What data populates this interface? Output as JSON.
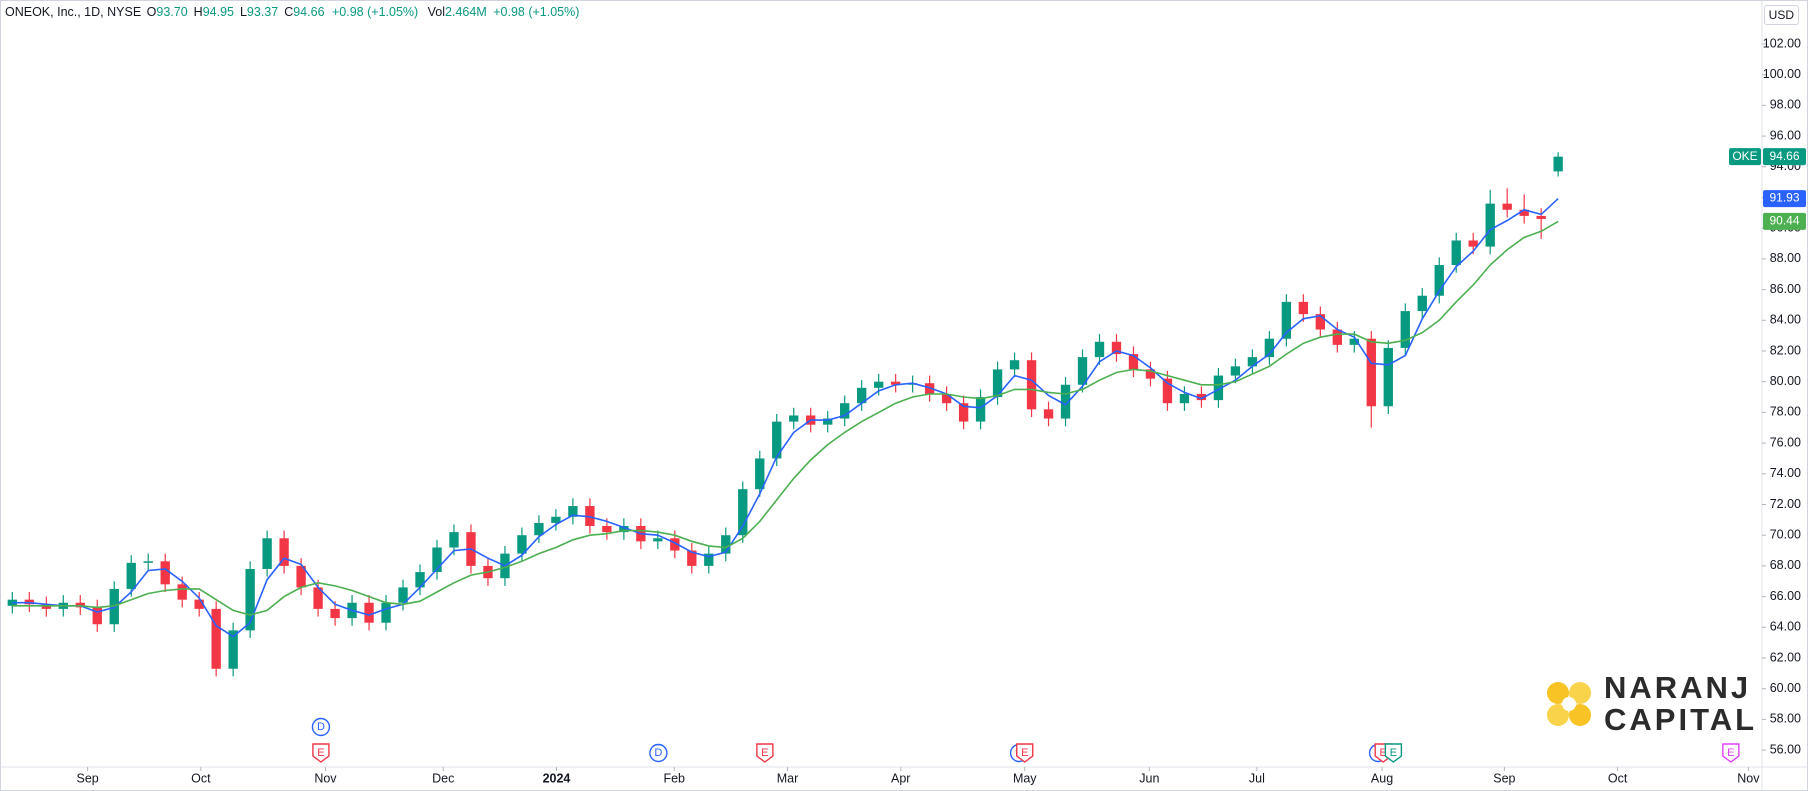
{
  "chart_data": {
    "type": "candlestick",
    "title": "ONEOK, Inc., 1D, NYSE",
    "header_values": [
      {
        "label": "O",
        "text": "93.70"
      },
      {
        "label": "H",
        "text": "94.95"
      },
      {
        "label": "L",
        "text": "93.37"
      },
      {
        "label": "C",
        "text": "94.66"
      }
    ],
    "change": "+0.98 (+1.05%)",
    "volume_label": "Vol",
    "volume": "2.464M",
    "volume_change": "+0.98 (+1.05%)",
    "currency": "USD",
    "symbol_label": "OKE",
    "up_color": "#089981",
    "down_color": "#f23645",
    "x": [
      1,
      4,
      7,
      10,
      13,
      16,
      19,
      22,
      25,
      28,
      31,
      34,
      37,
      40,
      43,
      46,
      49,
      52,
      55,
      58,
      61,
      64,
      67,
      70,
      73,
      76,
      79,
      82,
      85,
      88,
      91,
      94,
      97,
      100,
      103,
      106,
      109,
      112,
      115,
      118,
      121,
      124,
      127,
      130,
      133,
      136,
      139,
      142,
      145,
      148,
      151,
      154,
      157,
      160,
      163,
      166,
      169,
      172,
      175,
      178,
      181,
      184,
      187,
      190,
      193,
      196,
      199,
      202,
      205,
      208,
      211,
      214,
      217,
      220,
      223,
      226,
      229,
      232,
      235,
      238,
      241,
      244,
      247,
      250,
      253,
      256,
      259,
      262,
      265,
      268,
      271,
      274
    ],
    "open": [
      65.4,
      65.8,
      65.5,
      65.2,
      65.6,
      65.3,
      64.2,
      66.5,
      68.2,
      68.3,
      66.8,
      65.8,
      65.2,
      61.3,
      63.8,
      67.8,
      69.8,
      68.0,
      66.6,
      65.2,
      64.6,
      65.6,
      64.3,
      65.6,
      66.6,
      67.6,
      69.2,
      70.2,
      68.0,
      67.2,
      68.8,
      70.0,
      70.8,
      71.2,
      71.9,
      70.6,
      70.2,
      70.6,
      69.6,
      69.8,
      69.0,
      68.0,
      68.8,
      70.0,
      73.0,
      75.0,
      77.4,
      77.8,
      77.2,
      77.6,
      78.6,
      79.6,
      80.0,
      79.8,
      79.9,
      79.2,
      78.6,
      77.4,
      79.0,
      80.8,
      81.4,
      78.2,
      77.6,
      79.8,
      81.6,
      82.6,
      81.8,
      80.8,
      80.2,
      78.6,
      79.2,
      78.8,
      80.4,
      81.0,
      81.6,
      82.8,
      85.2,
      84.4,
      83.4,
      82.4,
      82.8,
      78.4,
      82.2,
      84.6,
      85.6,
      87.6,
      89.2,
      88.8,
      91.6,
      91.2,
      90.8,
      93.7
    ],
    "high": [
      66.3,
      66.3,
      66.0,
      66.1,
      66.1,
      65.8,
      67.0,
      68.7,
      68.8,
      68.8,
      67.3,
      66.3,
      65.7,
      64.3,
      68.3,
      70.3,
      70.3,
      68.5,
      67.1,
      65.7,
      66.1,
      66.1,
      66.1,
      67.1,
      68.1,
      69.7,
      70.7,
      70.7,
      68.5,
      69.3,
      70.5,
      71.3,
      71.7,
      72.4,
      72.4,
      71.1,
      71.1,
      71.1,
      70.3,
      70.3,
      69.5,
      69.3,
      70.5,
      73.5,
      75.5,
      77.9,
      78.3,
      78.3,
      78.1,
      79.1,
      80.1,
      80.5,
      80.5,
      80.4,
      80.4,
      79.7,
      79.1,
      79.5,
      81.3,
      81.9,
      81.9,
      78.7,
      80.3,
      82.1,
      83.1,
      83.1,
      82.3,
      81.3,
      80.7,
      79.7,
      79.7,
      80.9,
      81.5,
      82.1,
      83.3,
      85.7,
      85.7,
      84.9,
      83.9,
      83.3,
      83.3,
      82.7,
      85.1,
      86.1,
      88.1,
      89.7,
      89.7,
      92.5,
      92.6,
      92.2,
      91.3,
      94.95
    ],
    "low": [
      64.9,
      65.0,
      64.7,
      64.7,
      64.8,
      63.7,
      63.7,
      66.0,
      67.7,
      66.3,
      65.3,
      64.7,
      60.8,
      60.8,
      63.3,
      67.3,
      67.5,
      66.1,
      64.7,
      64.1,
      64.1,
      63.8,
      63.8,
      65.1,
      66.1,
      67.1,
      68.7,
      67.5,
      66.7,
      66.7,
      68.3,
      69.5,
      70.3,
      70.7,
      70.1,
      69.7,
      69.7,
      69.1,
      69.1,
      68.5,
      67.5,
      67.5,
      68.3,
      69.5,
      72.5,
      74.5,
      76.9,
      76.7,
      76.7,
      77.1,
      78.1,
      79.1,
      79.3,
      79.3,
      78.7,
      78.1,
      76.9,
      76.9,
      78.5,
      80.3,
      77.7,
      77.1,
      77.1,
      79.3,
      81.1,
      81.3,
      80.3,
      79.7,
      78.1,
      78.1,
      78.3,
      78.3,
      79.9,
      80.5,
      81.1,
      82.3,
      83.9,
      82.9,
      81.9,
      81.9,
      77.0,
      77.9,
      81.7,
      84.1,
      85.1,
      87.1,
      88.3,
      88.3,
      90.7,
      90.3,
      89.3,
      93.37
    ],
    "close": [
      65.8,
      65.5,
      65.2,
      65.6,
      65.3,
      64.2,
      66.5,
      68.2,
      68.3,
      66.8,
      65.8,
      65.2,
      61.3,
      63.8,
      67.8,
      69.8,
      68.0,
      66.6,
      65.2,
      64.6,
      65.6,
      64.3,
      65.6,
      66.6,
      67.6,
      69.2,
      70.2,
      68.0,
      67.2,
      68.8,
      70.0,
      70.8,
      71.2,
      71.9,
      70.6,
      70.2,
      70.6,
      69.6,
      69.8,
      69.0,
      68.0,
      68.8,
      70.0,
      73.0,
      75.0,
      77.4,
      77.8,
      77.2,
      77.6,
      78.6,
      79.6,
      80.0,
      79.8,
      79.9,
      79.2,
      78.6,
      77.4,
      79.0,
      80.8,
      81.4,
      78.2,
      77.6,
      79.8,
      81.6,
      82.6,
      81.8,
      80.8,
      80.2,
      78.6,
      79.2,
      78.8,
      80.4,
      81.0,
      81.6,
      82.8,
      85.2,
      84.4,
      83.4,
      82.4,
      82.8,
      78.4,
      82.2,
      84.6,
      85.6,
      87.6,
      89.2,
      88.8,
      91.6,
      91.2,
      90.8,
      90.6,
      94.66
    ],
    "series": [
      {
        "color": "#2962ff",
        "values": [
          65.6,
          65.6,
          65.5,
          65.4,
          65.4,
          65.0,
          65.3,
          66.3,
          67.7,
          67.8,
          67.0,
          65.9,
          64.1,
          63.4,
          64.3,
          67.1,
          68.5,
          68.1,
          66.6,
          65.5,
          65.1,
          64.8,
          65.2,
          65.5,
          66.6,
          67.8,
          69.0,
          69.1,
          68.5,
          68.0,
          68.7,
          69.9,
          70.7,
          71.3,
          71.2,
          70.9,
          70.5,
          70.1,
          70.0,
          69.5,
          68.9,
          68.6,
          68.9,
          70.6,
          72.7,
          75.1,
          76.7,
          77.5,
          77.5,
          77.8,
          78.6,
          79.4,
          79.8,
          79.9,
          79.6,
          79.2,
          78.4,
          78.3,
          79.1,
          80.4,
          80.1,
          79.1,
          78.5,
          79.7,
          81.3,
          82.0,
          81.7,
          80.9,
          79.9,
          79.3,
          78.9,
          79.5,
          80.1,
          81.0,
          81.8,
          83.2,
          84.1,
          84.3,
          83.4,
          82.9,
          81.2,
          81.1,
          81.7,
          84.1,
          85.9,
          87.5,
          88.5,
          89.9,
          90.5,
          91.2,
          90.9,
          91.93
        ]
      },
      {
        "color": "#4caf50",
        "values": [
          65.4,
          65.4,
          65.4,
          65.4,
          65.4,
          65.3,
          65.4,
          65.8,
          66.2,
          66.4,
          66.5,
          66.5,
          65.8,
          65.1,
          64.8,
          65.1,
          66.0,
          66.6,
          66.9,
          66.7,
          66.4,
          66.0,
          65.6,
          65.5,
          65.7,
          66.3,
          66.9,
          67.4,
          67.6,
          67.9,
          68.3,
          68.8,
          69.2,
          69.7,
          70.0,
          70.1,
          70.3,
          70.3,
          70.2,
          70.0,
          69.6,
          69.3,
          69.2,
          69.8,
          70.9,
          72.3,
          73.7,
          74.9,
          75.9,
          76.7,
          77.4,
          78.0,
          78.6,
          79.0,
          79.2,
          79.2,
          79.0,
          78.9,
          79.1,
          79.5,
          79.5,
          79.3,
          79.2,
          79.5,
          80.1,
          80.6,
          80.8,
          80.7,
          80.4,
          80.1,
          79.8,
          79.8,
          80.0,
          80.5,
          81.0,
          81.8,
          82.5,
          82.9,
          83.1,
          83.1,
          82.6,
          82.5,
          82.7,
          83.2,
          84.0,
          85.2,
          86.3,
          87.6,
          88.6,
          89.4,
          89.8,
          90.44
        ]
      }
    ],
    "xlim": [
      -1,
      310
    ],
    "xticks": [
      {
        "value": 14.3,
        "label": "Sep"
      },
      {
        "value": 34.3,
        "label": "Oct"
      },
      {
        "value": 56.3,
        "label": "Nov"
      },
      {
        "value": 77.1,
        "label": "Dec"
      },
      {
        "value": 97.1,
        "label": "2024"
      },
      {
        "value": 117.9,
        "label": "Feb"
      },
      {
        "value": 137.9,
        "label": "Mar"
      },
      {
        "value": 157.9,
        "label": "Apr"
      },
      {
        "value": 179.8,
        "label": "May"
      },
      {
        "value": 201.8,
        "label": "Jun"
      },
      {
        "value": 220.8,
        "label": "Jul"
      },
      {
        "value": 242.9,
        "label": "Aug"
      },
      {
        "value": 264.5,
        "label": "Sep"
      },
      {
        "value": 284.5,
        "label": "Oct"
      },
      {
        "value": 307.6,
        "label": "Nov"
      }
    ],
    "ylim": [
      54.9,
      104.8
    ],
    "yticks": [
      {
        "value": 56,
        "label": "56.00"
      },
      {
        "value": 58,
        "label": "58.00"
      },
      {
        "value": 60,
        "label": "60.00"
      },
      {
        "value": 62,
        "label": "62.00"
      },
      {
        "value": 64,
        "label": "64.00"
      },
      {
        "value": 66,
        "label": "66.00"
      },
      {
        "value": 68,
        "label": "68.00"
      },
      {
        "value": 70,
        "label": "70.00"
      },
      {
        "value": 72,
        "label": "72.00"
      },
      {
        "value": 74,
        "label": "74.00"
      },
      {
        "value": 76,
        "label": "76.00"
      },
      {
        "value": 78,
        "label": "78.00"
      },
      {
        "value": 80,
        "label": "80.00"
      },
      {
        "value": 82,
        "label": "82.00"
      },
      {
        "value": 84,
        "label": "84.00"
      },
      {
        "value": 86,
        "label": "86.00"
      },
      {
        "value": 88,
        "label": "88.00"
      },
      {
        "value": 90,
        "label": "90.00"
      },
      {
        "value": 92,
        "label": "92.00"
      },
      {
        "value": 94,
        "label": "94.00"
      },
      {
        "value": 96,
        "label": "96.00"
      },
      {
        "value": 98,
        "label": "98.00"
      },
      {
        "value": 100,
        "label": "100.00"
      },
      {
        "value": 102,
        "label": "102.00"
      }
    ],
    "grid": false,
    "events": [
      {
        "label": "E",
        "x": 55.5,
        "color": "#f23645"
      },
      {
        "label": "D",
        "x": 55.5,
        "color": "#2962ff"
      },
      {
        "label": "D",
        "x": 115.1,
        "color": "#2962ff"
      },
      {
        "label": "E",
        "x": 133.9,
        "color": "#f23645"
      },
      {
        "label": "D",
        "x": 178.8,
        "color": "#2962ff"
      },
      {
        "label": "E",
        "x": 179.8,
        "color": "#f23645"
      },
      {
        "label": "D",
        "x": 242.2,
        "color": "#2962ff"
      },
      {
        "label": "E",
        "x": 243.1,
        "color": "#f23645"
      },
      {
        "label": "E",
        "x": 244.9,
        "color": "#089981"
      },
      {
        "label": "E",
        "x": 304.5,
        "color": "#e040fb"
      }
    ],
    "watermark": [
      "NARANJ",
      "CAPITAL"
    ]
  }
}
